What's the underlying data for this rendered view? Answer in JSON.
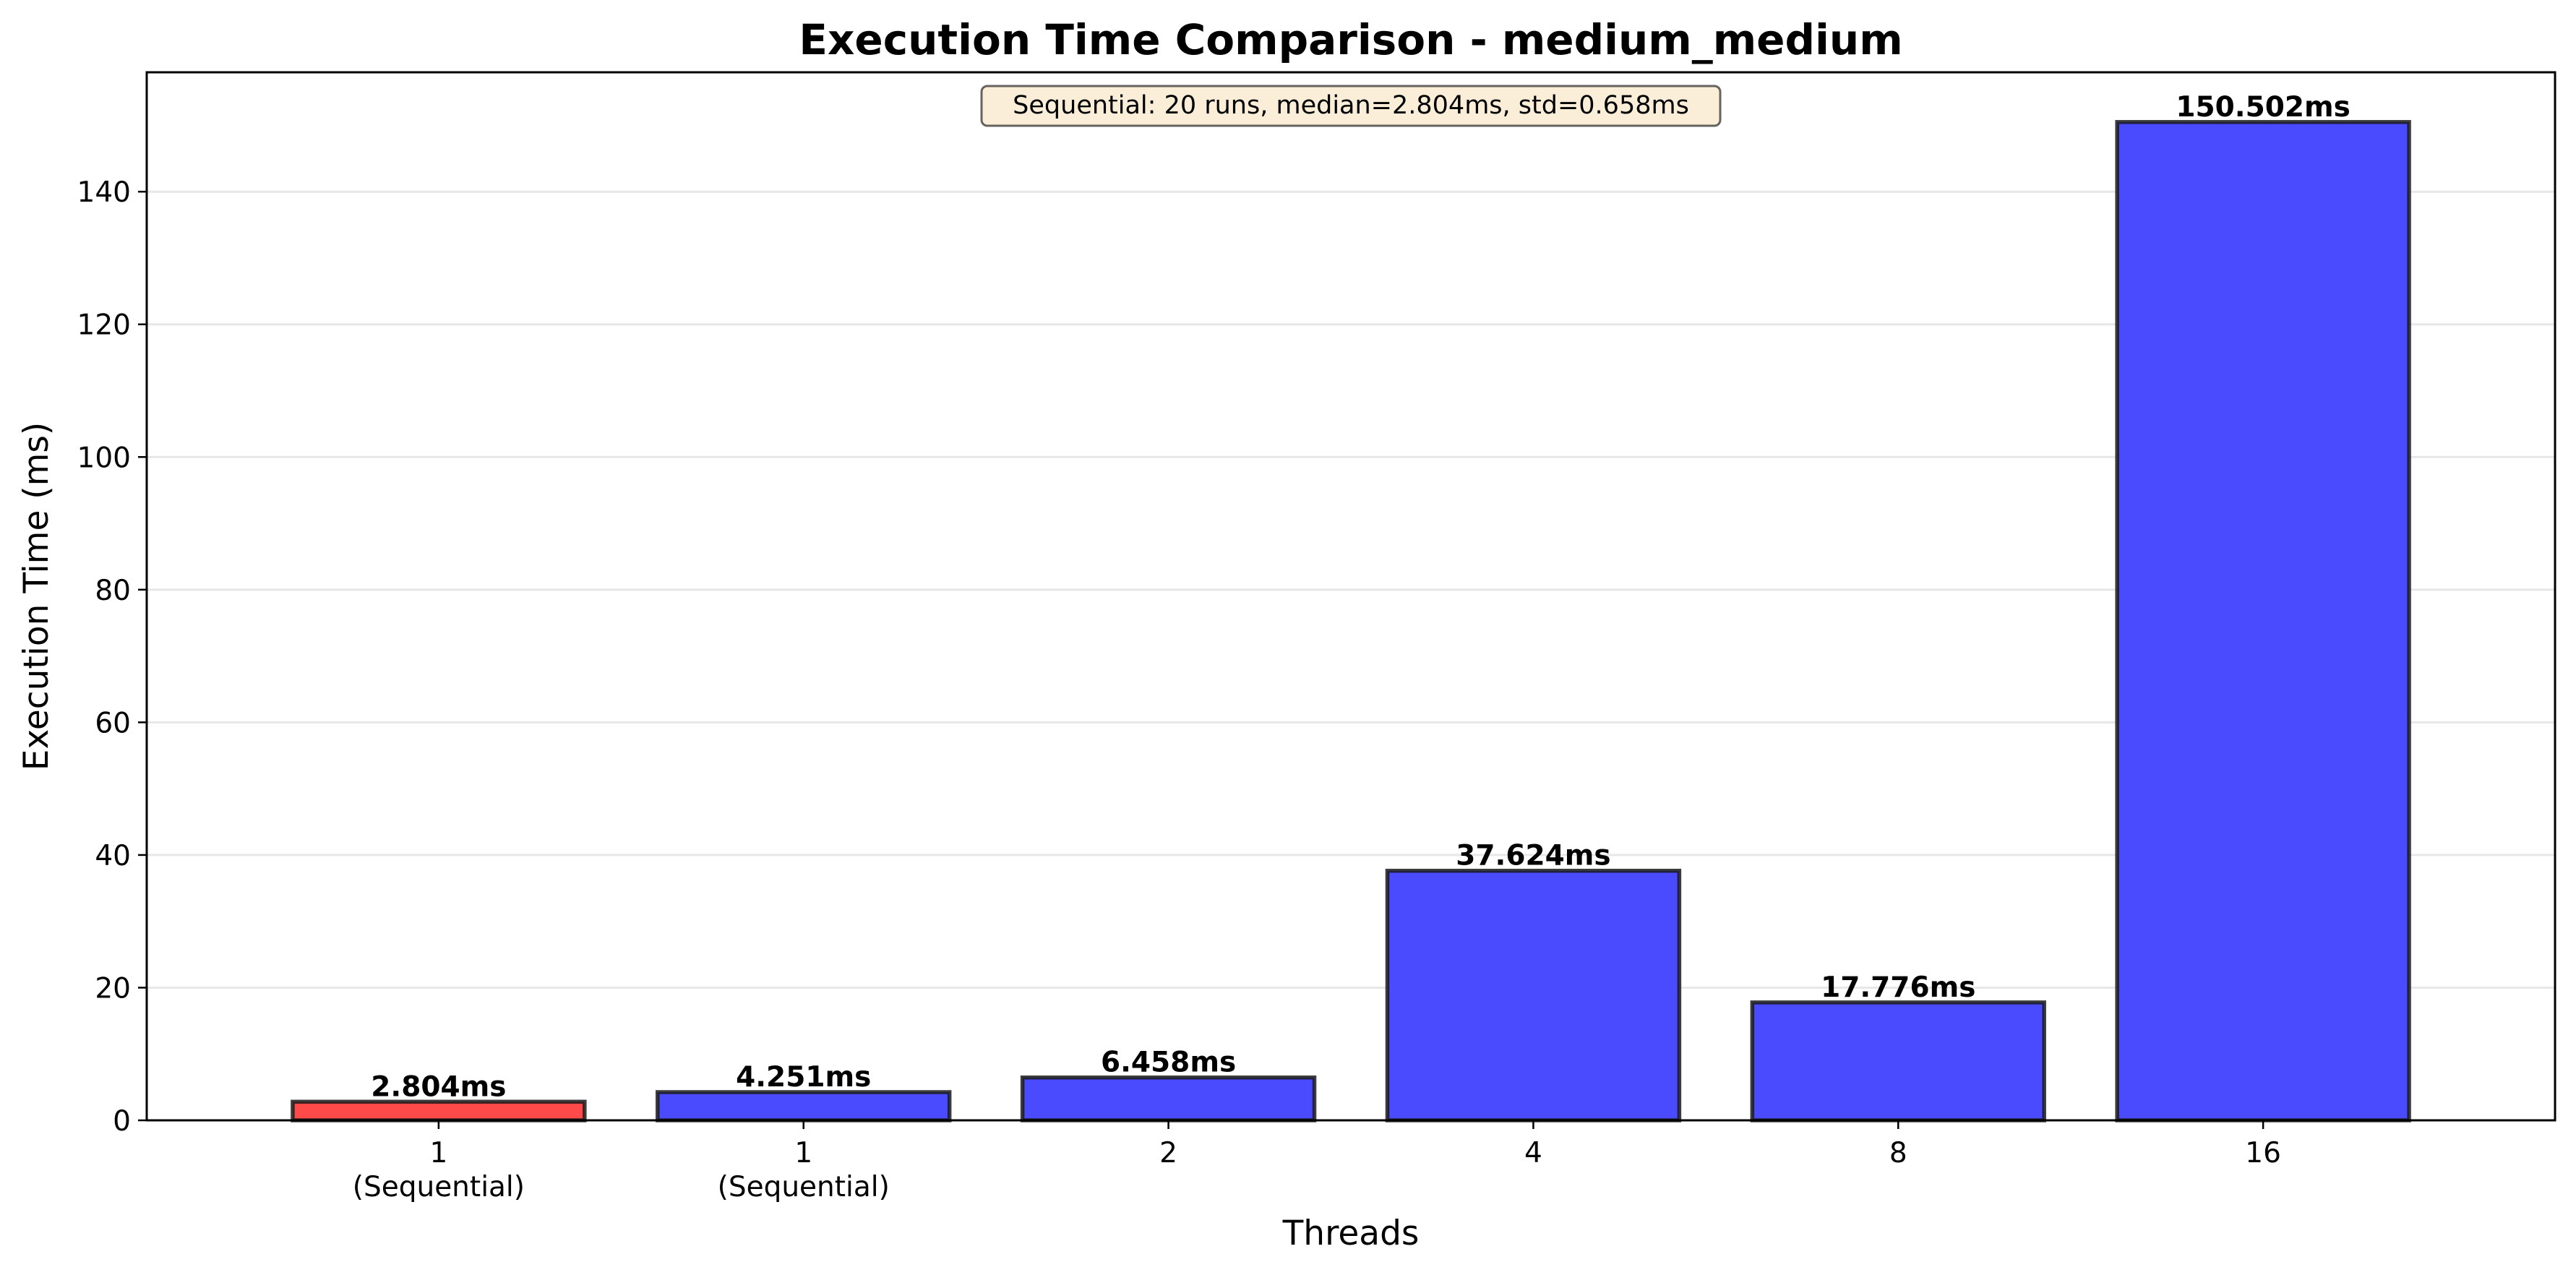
{
  "chart_data": {
    "type": "bar",
    "title": "Execution Time Comparison - medium_medium",
    "xlabel": "Threads",
    "ylabel": "Execution Time (ms)",
    "categories": [
      "1\n(Sequential)",
      "1\n(Sequential)",
      "2",
      "4",
      "8",
      "16"
    ],
    "values": [
      2.804,
      4.251,
      6.458,
      37.624,
      17.776,
      150.502
    ],
    "data_labels": [
      "2.804ms",
      "4.251ms",
      "6.458ms",
      "37.624ms",
      "17.776ms",
      "150.502ms"
    ],
    "bar_colors": [
      "#ff4a4a",
      "#4a4aff",
      "#4a4aff",
      "#4a4aff",
      "#4a4aff",
      "#4a4aff"
    ],
    "ylim": [
      0,
      158
    ],
    "yticks": [
      0,
      20,
      40,
      60,
      80,
      100,
      120,
      140
    ],
    "grid": "horizontal",
    "annotation": "Sequential: 20 runs, median=2.804ms, std=0.658ms",
    "annotation_box_color": "#f5deb3"
  }
}
